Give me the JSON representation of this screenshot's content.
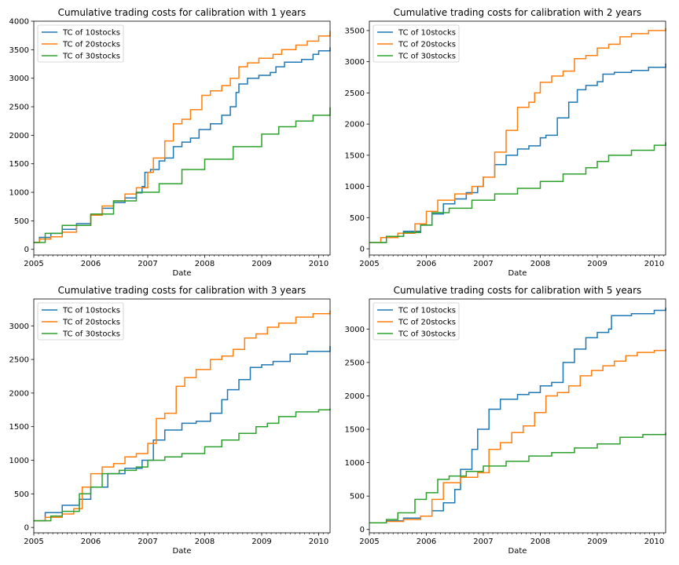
{
  "chart_data": [
    {
      "type": "line",
      "title": "Cumulative trading costs for calibration with 1 years",
      "xlabel": "Date",
      "ylabel": "",
      "x_ticks": [
        "2005",
        "2006",
        "2007",
        "2008",
        "2009",
        "2010"
      ],
      "y_ticks": [
        0,
        500,
        1000,
        1500,
        2000,
        2500,
        3000,
        3500,
        4000
      ],
      "xlim": [
        2005.0,
        2010.2
      ],
      "ylim": [
        -100,
        4000
      ],
      "legend_position": "upper-left",
      "grid": false,
      "series": [
        {
          "name": "TC of 10stocks",
          "color": "#1f77b4",
          "x": [
            2005.0,
            2005.1,
            2005.3,
            2005.5,
            2005.75,
            2006.0,
            2006.2,
            2006.4,
            2006.6,
            2006.8,
            2006.9,
            2006.95,
            2007.05,
            2007.2,
            2007.3,
            2007.45,
            2007.6,
            2007.75,
            2007.9,
            2008.1,
            2008.3,
            2008.45,
            2008.55,
            2008.6,
            2008.75,
            2008.95,
            2009.15,
            2009.25,
            2009.4,
            2009.7,
            2009.9,
            2010.0,
            2010.2
          ],
          "values": [
            120,
            210,
            280,
            350,
            450,
            600,
            720,
            820,
            900,
            990,
            1100,
            1350,
            1400,
            1550,
            1600,
            1800,
            1880,
            1950,
            2100,
            2200,
            2350,
            2500,
            2750,
            2900,
            3000,
            3050,
            3100,
            3200,
            3280,
            3330,
            3420,
            3480,
            3540
          ]
        },
        {
          "name": "TC of 20stocks",
          "color": "#ff7f0e",
          "x": [
            2005.0,
            2005.1,
            2005.3,
            2005.5,
            2005.75,
            2006.0,
            2006.2,
            2006.4,
            2006.6,
            2006.8,
            2007.0,
            2007.1,
            2007.3,
            2007.45,
            2007.6,
            2007.75,
            2007.95,
            2008.1,
            2008.3,
            2008.45,
            2008.6,
            2008.75,
            2008.95,
            2009.2,
            2009.35,
            2009.6,
            2009.8,
            2010.0,
            2010.2
          ],
          "values": [
            120,
            180,
            220,
            300,
            420,
            600,
            760,
            850,
            970,
            1080,
            1350,
            1600,
            1900,
            2200,
            2280,
            2450,
            2700,
            2780,
            2870,
            3000,
            3200,
            3270,
            3350,
            3420,
            3500,
            3580,
            3650,
            3740,
            3830
          ]
        },
        {
          "name": "TC of 30stocks",
          "color": "#2ca02c",
          "x": [
            2005.0,
            2005.2,
            2005.5,
            2006.0,
            2006.4,
            2006.8,
            2007.2,
            2007.6,
            2008.0,
            2008.5,
            2009.0,
            2009.3,
            2009.6,
            2009.9,
            2010.2
          ],
          "values": [
            120,
            280,
            420,
            620,
            850,
            1000,
            1150,
            1400,
            1580,
            1800,
            2020,
            2150,
            2250,
            2350,
            2490
          ]
        }
      ]
    },
    {
      "type": "line",
      "title": "Cumulative trading costs for calibration with 2 years",
      "xlabel": "Date",
      "ylabel": "",
      "x_ticks": [
        "2005",
        "2006",
        "2007",
        "2008",
        "2009",
        "2010"
      ],
      "y_ticks": [
        0,
        500,
        1000,
        1500,
        2000,
        2500,
        3000,
        3500
      ],
      "xlim": [
        2005.0,
        2010.2
      ],
      "ylim": [
        -100,
        3650
      ],
      "legend_position": "upper-left",
      "grid": false,
      "series": [
        {
          "name": "TC of 10stocks",
          "color": "#1f77b4",
          "x": [
            2005.0,
            2005.3,
            2005.6,
            2005.9,
            2006.1,
            2006.3,
            2006.5,
            2006.7,
            2006.9,
            2007.0,
            2007.2,
            2007.4,
            2007.6,
            2007.8,
            2008.0,
            2008.1,
            2008.3,
            2008.5,
            2008.65,
            2008.8,
            2009.0,
            2009.1,
            2009.3,
            2009.6,
            2009.9,
            2010.2
          ],
          "values": [
            100,
            200,
            280,
            380,
            560,
            720,
            800,
            900,
            1000,
            1150,
            1350,
            1500,
            1600,
            1650,
            1780,
            1820,
            2100,
            2350,
            2550,
            2620,
            2680,
            2800,
            2830,
            2860,
            2910,
            2970
          ]
        },
        {
          "name": "TC of 20stocks",
          "color": "#ff7f0e",
          "x": [
            2005.0,
            2005.2,
            2005.5,
            2005.8,
            2006.0,
            2006.2,
            2006.5,
            2006.8,
            2007.0,
            2007.2,
            2007.4,
            2007.6,
            2007.8,
            2007.9,
            2008.0,
            2008.2,
            2008.4,
            2008.6,
            2008.8,
            2009.0,
            2009.2,
            2009.4,
            2009.6,
            2009.9,
            2010.2
          ],
          "values": [
            100,
            180,
            250,
            400,
            600,
            780,
            880,
            1000,
            1150,
            1550,
            1900,
            2270,
            2350,
            2500,
            2670,
            2770,
            2850,
            3050,
            3100,
            3220,
            3280,
            3400,
            3450,
            3500,
            3540
          ]
        },
        {
          "name": "TC of 30stocks",
          "color": "#2ca02c",
          "x": [
            2005.0,
            2005.3,
            2005.6,
            2005.9,
            2006.1,
            2006.4,
            2006.8,
            2007.2,
            2007.6,
            2008.0,
            2008.4,
            2008.8,
            2009.0,
            2009.2,
            2009.6,
            2010.0,
            2010.2
          ],
          "values": [
            100,
            200,
            260,
            380,
            580,
            650,
            780,
            880,
            970,
            1080,
            1200,
            1300,
            1400,
            1500,
            1580,
            1660,
            1710
          ]
        }
      ]
    },
    {
      "type": "line",
      "title": "Cumulative trading costs for calibration with 3 years",
      "xlabel": "Date",
      "ylabel": "",
      "x_ticks": [
        "2005",
        "2006",
        "2007",
        "2008",
        "2009",
        "2010"
      ],
      "y_ticks": [
        0,
        500,
        1000,
        1500,
        2000,
        2500,
        3000
      ],
      "xlim": [
        2005.0,
        2010.2
      ],
      "ylim": [
        -80,
        3400
      ],
      "legend_position": "upper-left",
      "grid": false,
      "series": [
        {
          "name": "TC of 10stocks",
          "color": "#1f77b4",
          "x": [
            2005.0,
            2005.2,
            2005.5,
            2005.8,
            2006.0,
            2006.3,
            2006.6,
            2006.9,
            2007.1,
            2007.3,
            2007.6,
            2007.85,
            2008.1,
            2008.3,
            2008.4,
            2008.6,
            2008.8,
            2009.0,
            2009.2,
            2009.5,
            2009.8,
            2010.2
          ],
          "values": [
            100,
            220,
            330,
            420,
            600,
            800,
            880,
            1000,
            1300,
            1450,
            1550,
            1580,
            1700,
            1900,
            2050,
            2200,
            2380,
            2420,
            2470,
            2580,
            2620,
            2700
          ]
        },
        {
          "name": "TC of 20stocks",
          "color": "#ff7f0e",
          "x": [
            2005.0,
            2005.2,
            2005.5,
            2005.7,
            2005.85,
            2006.0,
            2006.2,
            2006.4,
            2006.6,
            2006.8,
            2007.0,
            2007.15,
            2007.3,
            2007.5,
            2007.65,
            2007.85,
            2008.1,
            2008.3,
            2008.5,
            2008.7,
            2008.9,
            2009.1,
            2009.3,
            2009.6,
            2009.9,
            2010.2
          ],
          "values": [
            100,
            150,
            200,
            280,
            600,
            800,
            900,
            950,
            1050,
            1100,
            1250,
            1620,
            1700,
            2100,
            2230,
            2350,
            2500,
            2550,
            2650,
            2820,
            2880,
            2980,
            3040,
            3130,
            3180,
            3230
          ]
        },
        {
          "name": "TC of 30stocks",
          "color": "#2ca02c",
          "x": [
            2005.0,
            2005.3,
            2005.5,
            2005.8,
            2006.0,
            2006.2,
            2006.5,
            2006.8,
            2007.0,
            2007.3,
            2007.6,
            2008.0,
            2008.3,
            2008.6,
            2008.9,
            2009.1,
            2009.3,
            2009.6,
            2010.0,
            2010.2
          ],
          "values": [
            100,
            170,
            240,
            500,
            600,
            800,
            850,
            900,
            1000,
            1050,
            1100,
            1200,
            1300,
            1400,
            1500,
            1550,
            1650,
            1720,
            1750,
            1770
          ]
        }
      ]
    },
    {
      "type": "line",
      "title": "Cumulative trading costs for calibration with 5 years",
      "xlabel": "Date",
      "ylabel": "",
      "x_ticks": [
        "2005",
        "2006",
        "2007",
        "2008",
        "2009",
        "2010"
      ],
      "y_ticks": [
        0,
        500,
        1000,
        1500,
        2000,
        2500,
        3000
      ],
      "xlim": [
        2005.0,
        2010.2
      ],
      "ylim": [
        -50,
        3450
      ],
      "legend_position": "upper-left",
      "grid": false,
      "series": [
        {
          "name": "TC of 10stocks",
          "color": "#1f77b4",
          "x": [
            2005.0,
            2005.3,
            2005.6,
            2005.9,
            2006.1,
            2006.3,
            2006.5,
            2006.6,
            2006.8,
            2006.9,
            2007.1,
            2007.3,
            2007.6,
            2007.8,
            2008.0,
            2008.2,
            2008.4,
            2008.6,
            2008.8,
            2009.0,
            2009.2,
            2009.25,
            2009.6,
            2010.0,
            2010.2
          ],
          "values": [
            100,
            130,
            170,
            200,
            280,
            400,
            600,
            900,
            1200,
            1500,
            1800,
            1950,
            2020,
            2050,
            2150,
            2200,
            2500,
            2700,
            2870,
            2950,
            3000,
            3200,
            3230,
            3280,
            3320
          ]
        },
        {
          "name": "TC of 20stocks",
          "color": "#ff7f0e",
          "x": [
            2005.0,
            2005.3,
            2005.6,
            2005.9,
            2006.1,
            2006.3,
            2006.6,
            2006.9,
            2007.1,
            2007.3,
            2007.5,
            2007.7,
            2007.9,
            2008.1,
            2008.3,
            2008.5,
            2008.7,
            2008.9,
            2009.1,
            2009.3,
            2009.5,
            2009.7,
            2010.0,
            2010.2
          ],
          "values": [
            100,
            120,
            150,
            200,
            450,
            700,
            780,
            850,
            1200,
            1300,
            1450,
            1550,
            1750,
            2000,
            2050,
            2150,
            2300,
            2380,
            2450,
            2520,
            2600,
            2650,
            2680,
            2700
          ]
        },
        {
          "name": "TC of 30stocks",
          "color": "#2ca02c",
          "x": [
            2005.0,
            2005.3,
            2005.5,
            2005.8,
            2006.0,
            2006.2,
            2006.4,
            2006.7,
            2007.0,
            2007.4,
            2007.8,
            2008.2,
            2008.6,
            2009.0,
            2009.4,
            2009.8,
            2010.2
          ],
          "values": [
            100,
            150,
            250,
            450,
            550,
            750,
            800,
            870,
            950,
            1020,
            1100,
            1150,
            1220,
            1280,
            1380,
            1420,
            1450
          ]
        }
      ]
    }
  ]
}
